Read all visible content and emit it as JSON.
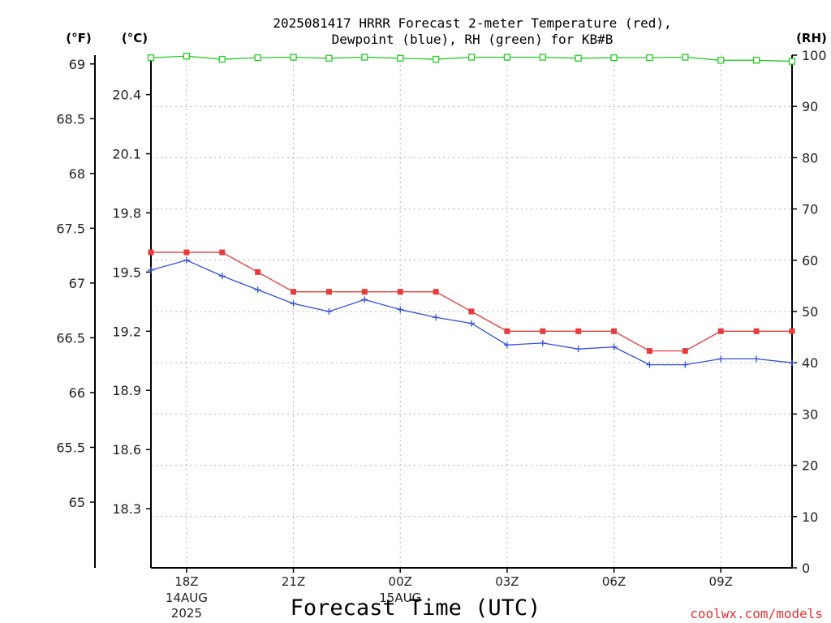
{
  "title_line1": "2025081417 HRRR Forecast 2-meter Temperature (red),",
  "title_line2": "Dewpoint (blue), RH (green) for KB#B",
  "unit_f": "(°F)",
  "unit_c": "(°C)",
  "unit_rh": "(RH)",
  "credit": "coolwx.com/models",
  "chart_data": {
    "type": "line",
    "title": "2025081417 HRRR Forecast 2-meter Temperature (red), Dewpoint (blue), RH (green) for KB#B",
    "xlabel": "Forecast Time (UTC)",
    "x": [
      17,
      18,
      19,
      20,
      21,
      22,
      23,
      24,
      25,
      26,
      27,
      28,
      29,
      30,
      31,
      32,
      33,
      34,
      35
    ],
    "x_range": [
      17,
      35
    ],
    "x_ticks": [
      {
        "x": 18,
        "label": "18Z",
        "sub1": "14AUG",
        "sub2": "2025"
      },
      {
        "x": 21,
        "label": "21Z"
      },
      {
        "x": 24,
        "label": "00Z",
        "sub1": "15AUG"
      },
      {
        "x": 27,
        "label": "03Z"
      },
      {
        "x": 30,
        "label": "06Z"
      },
      {
        "x": 33,
        "label": "09Z"
      }
    ],
    "ylim_c": [
      18.0,
      20.6
    ],
    "yticks_c": [
      "18.3",
      "18.6",
      "18.9",
      "19.2",
      "19.5",
      "19.8",
      "20.1",
      "20.4"
    ],
    "yticks_f": [
      "65",
      "65.5",
      "66",
      "66.5",
      "67",
      "67.5",
      "68",
      "68.5",
      "69"
    ],
    "ylim_rh": [
      0,
      100
    ],
    "yticks_rh": [
      "0",
      "10",
      "20",
      "30",
      "40",
      "50",
      "60",
      "70",
      "80",
      "90",
      "100"
    ],
    "grid": true,
    "series": [
      {
        "name": "Temperature",
        "axis": "c",
        "color": "#e83a3a",
        "marker": "filled-square",
        "values": [
          19.6,
          19.6,
          19.6,
          19.5,
          19.4,
          19.4,
          19.4,
          19.4,
          19.4,
          19.3,
          19.2,
          19.2,
          19.2,
          19.2,
          19.1,
          19.1,
          19.2,
          19.2,
          19.2
        ]
      },
      {
        "name": "Dewpoint",
        "axis": "c",
        "color": "#3050e0",
        "marker": "plus",
        "values": [
          19.51,
          19.56,
          19.48,
          19.41,
          19.34,
          19.3,
          19.36,
          19.31,
          19.27,
          19.24,
          19.13,
          19.14,
          19.11,
          19.12,
          19.03,
          19.03,
          19.06,
          19.06,
          19.04
        ]
      },
      {
        "name": "RH",
        "axis": "rh",
        "color": "#22cc22",
        "marker": "open-square",
        "values": [
          99.5,
          99.8,
          99.2,
          99.5,
          99.6,
          99.4,
          99.6,
          99.4,
          99.2,
          99.6,
          99.6,
          99.6,
          99.4,
          99.5,
          99.5,
          99.6,
          99.0,
          99.0,
          98.8
        ]
      }
    ]
  }
}
